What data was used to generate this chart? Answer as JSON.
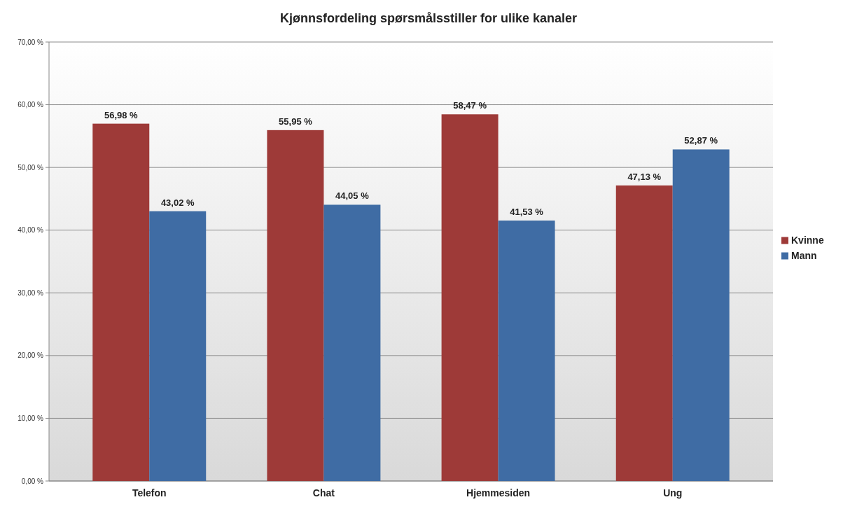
{
  "chart_data": {
    "type": "bar",
    "title": "Kjønnsfordeling spørsmålsstiller for ulike kanaler",
    "categories": [
      "Telefon",
      "Chat",
      "Hjemmesiden",
      "Ung"
    ],
    "series": [
      {
        "name": "Kvinne",
        "color": "#9e3a38",
        "values": [
          56.98,
          55.95,
          58.47,
          47.13
        ],
        "value_labels": [
          "56,98 %",
          "55,95 %",
          "58,47 %",
          "47,13 %"
        ]
      },
      {
        "name": "Mann",
        "color": "#3f6ca4",
        "values": [
          43.02,
          44.05,
          41.53,
          52.87
        ],
        "value_labels": [
          "43,02 %",
          "44,05 %",
          "41,53 %",
          "52,87 %"
        ]
      }
    ],
    "ylim": [
      0,
      70
    ],
    "yticks": [
      {
        "value": 0,
        "label": "0,00 %"
      },
      {
        "value": 10,
        "label": "10,00 %"
      },
      {
        "value": 20,
        "label": "20,00 %"
      },
      {
        "value": 30,
        "label": "30,00 %"
      },
      {
        "value": 40,
        "label": "40,00 %"
      },
      {
        "value": 50,
        "label": "50,00 %"
      },
      {
        "value": 60,
        "label": "60,00 %"
      },
      {
        "value": 70,
        "label": "70,00 %"
      }
    ],
    "grid": "y",
    "legend": "right"
  }
}
